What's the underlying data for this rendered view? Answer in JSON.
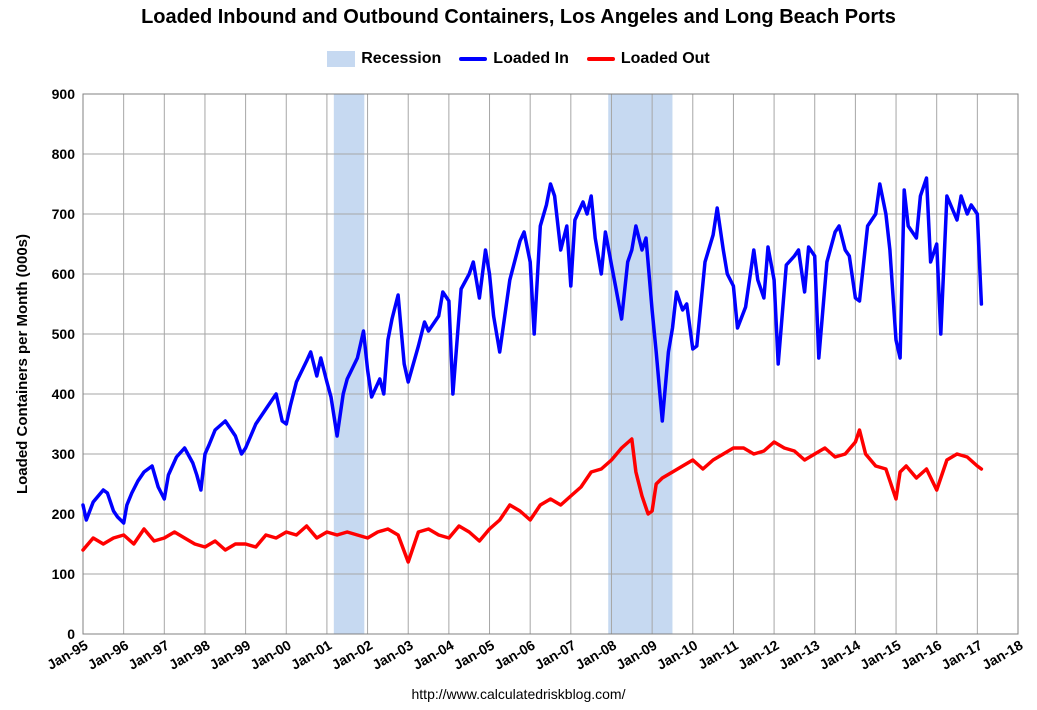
{
  "title": "Loaded Inbound and Outbound Containers, Los Angeles and Long Beach Ports",
  "source": "http://www.calculatedriskblog.com/",
  "legend": {
    "recession": "Recession",
    "loaded_in": "Loaded In",
    "loaded_out": "Loaded Out"
  },
  "colors": {
    "recession": "#c6d9f1",
    "loaded_in": "#0000ff",
    "loaded_out": "#ff0000",
    "grid": "#a6a6a6"
  },
  "chart_data": {
    "type": "line",
    "title": "Loaded Inbound and Outbound Containers, Los Angeles and Long Beach Ports",
    "xlabel": "",
    "ylabel": "Loaded Containers per Month (000s)",
    "ylim": [
      0,
      900
    ],
    "yticks": [
      0,
      100,
      200,
      300,
      400,
      500,
      600,
      700,
      800,
      900
    ],
    "xlim": [
      1995,
      2018
    ],
    "xticks": [
      "Jan-95",
      "Jan-96",
      "Jan-97",
      "Jan-98",
      "Jan-99",
      "Jan-00",
      "Jan-01",
      "Jan-02",
      "Jan-03",
      "Jan-04",
      "Jan-05",
      "Jan-06",
      "Jan-07",
      "Jan-08",
      "Jan-09",
      "Jan-10",
      "Jan-11",
      "Jan-12",
      "Jan-13",
      "Jan-14",
      "Jan-15",
      "Jan-16",
      "Jan-17",
      "Jan-18"
    ],
    "grid": true,
    "legend_position": "top-center",
    "recessions": [
      {
        "start": 2001.17,
        "end": 2001.92
      },
      {
        "start": 2007.92,
        "end": 2009.5
      }
    ],
    "series": [
      {
        "name": "Loaded In",
        "x": [
          1995.0,
          1995.08,
          1995.25,
          1995.5,
          1995.6,
          1995.75,
          1995.85,
          1996.0,
          1996.08,
          1996.2,
          1996.35,
          1996.5,
          1996.7,
          1996.85,
          1997.0,
          1997.1,
          1997.3,
          1997.5,
          1997.7,
          1997.8,
          1997.9,
          1998.0,
          1998.1,
          1998.25,
          1998.5,
          1998.75,
          1998.9,
          1999.0,
          1999.25,
          1999.5,
          1999.75,
          1999.9,
          2000.0,
          2000.1,
          2000.25,
          2000.5,
          2000.6,
          2000.75,
          2000.85,
          2001.0,
          2001.1,
          2001.25,
          2001.4,
          2001.5,
          2001.75,
          2001.9,
          2002.0,
          2002.1,
          2002.3,
          2002.4,
          2002.5,
          2002.6,
          2002.75,
          2002.9,
          2003.0,
          2003.25,
          2003.4,
          2003.5,
          2003.75,
          2003.85,
          2004.0,
          2004.1,
          2004.3,
          2004.5,
          2004.6,
          2004.75,
          2004.9,
          2005.0,
          2005.1,
          2005.25,
          2005.5,
          2005.75,
          2005.85,
          2006.0,
          2006.1,
          2006.25,
          2006.4,
          2006.5,
          2006.6,
          2006.75,
          2006.9,
          2007.0,
          2007.1,
          2007.3,
          2007.4,
          2007.5,
          2007.6,
          2007.75,
          2007.85,
          2008.0,
          2008.1,
          2008.25,
          2008.4,
          2008.5,
          2008.6,
          2008.75,
          2008.85,
          2009.0,
          2009.1,
          2009.25,
          2009.4,
          2009.5,
          2009.6,
          2009.75,
          2009.85,
          2010.0,
          2010.1,
          2010.3,
          2010.5,
          2010.6,
          2010.75,
          2010.85,
          2011.0,
          2011.1,
          2011.3,
          2011.5,
          2011.6,
          2011.75,
          2011.85,
          2012.0,
          2012.1,
          2012.3,
          2012.5,
          2012.6,
          2012.75,
          2012.85,
          2013.0,
          2013.1,
          2013.3,
          2013.5,
          2013.6,
          2013.75,
          2013.85,
          2014.0,
          2014.1,
          2014.3,
          2014.5,
          2014.6,
          2014.75,
          2014.85,
          2015.0,
          2015.1,
          2015.2,
          2015.3,
          2015.5,
          2015.6,
          2015.75,
          2015.85,
          2016.0,
          2016.1,
          2016.25,
          2016.5,
          2016.6,
          2016.75,
          2016.85,
          2017.0,
          2017.1
        ],
        "values": [
          215,
          190,
          220,
          240,
          235,
          205,
          195,
          185,
          215,
          235,
          255,
          270,
          280,
          245,
          225,
          265,
          295,
          310,
          285,
          265,
          240,
          300,
          315,
          340,
          355,
          330,
          300,
          310,
          350,
          375,
          400,
          355,
          350,
          380,
          420,
          455,
          470,
          430,
          460,
          420,
          395,
          330,
          400,
          425,
          460,
          505,
          440,
          395,
          425,
          400,
          490,
          525,
          565,
          450,
          420,
          480,
          520,
          505,
          530,
          570,
          555,
          400,
          575,
          600,
          620,
          560,
          640,
          600,
          530,
          470,
          590,
          655,
          670,
          620,
          500,
          680,
          715,
          750,
          730,
          640,
          680,
          580,
          690,
          720,
          700,
          730,
          660,
          600,
          670,
          615,
          580,
          525,
          620,
          640,
          680,
          640,
          660,
          540,
          470,
          355,
          470,
          510,
          570,
          540,
          550,
          475,
          480,
          620,
          665,
          710,
          640,
          600,
          580,
          510,
          545,
          640,
          590,
          560,
          645,
          590,
          450,
          615,
          630,
          640,
          570,
          645,
          630,
          460,
          620,
          670,
          680,
          640,
          630,
          560,
          555,
          680,
          700,
          750,
          700,
          640,
          490,
          460,
          740,
          680,
          660,
          730,
          760,
          620,
          650,
          500,
          730,
          690,
          730,
          700,
          715,
          700,
          550
        ]
      },
      {
        "name": "Loaded Out",
        "x": [
          1995.0,
          1995.25,
          1995.5,
          1995.75,
          1996.0,
          1996.25,
          1996.5,
          1996.75,
          1997.0,
          1997.25,
          1997.5,
          1997.75,
          1998.0,
          1998.25,
          1998.5,
          1998.75,
          1999.0,
          1999.25,
          1999.5,
          1999.75,
          2000.0,
          2000.25,
          2000.5,
          2000.75,
          2001.0,
          2001.25,
          2001.5,
          2001.75,
          2002.0,
          2002.25,
          2002.5,
          2002.75,
          2003.0,
          2003.25,
          2003.5,
          2003.75,
          2004.0,
          2004.25,
          2004.5,
          2004.75,
          2005.0,
          2005.25,
          2005.5,
          2005.75,
          2006.0,
          2006.25,
          2006.5,
          2006.75,
          2007.0,
          2007.25,
          2007.5,
          2007.75,
          2008.0,
          2008.25,
          2008.5,
          2008.6,
          2008.75,
          2008.9,
          2009.0,
          2009.1,
          2009.25,
          2009.5,
          2009.75,
          2010.0,
          2010.25,
          2010.5,
          2010.75,
          2011.0,
          2011.25,
          2011.5,
          2011.75,
          2012.0,
          2012.25,
          2012.5,
          2012.75,
          2013.0,
          2013.25,
          2013.5,
          2013.75,
          2014.0,
          2014.1,
          2014.25,
          2014.5,
          2014.75,
          2015.0,
          2015.1,
          2015.25,
          2015.5,
          2015.75,
          2016.0,
          2016.25,
          2016.5,
          2016.75,
          2017.0,
          2017.1
        ],
        "values": [
          140,
          160,
          150,
          160,
          165,
          150,
          175,
          155,
          160,
          170,
          160,
          150,
          145,
          155,
          140,
          150,
          150,
          145,
          165,
          160,
          170,
          165,
          180,
          160,
          170,
          165,
          170,
          165,
          160,
          170,
          175,
          165,
          120,
          170,
          175,
          165,
          160,
          180,
          170,
          155,
          175,
          190,
          215,
          205,
          190,
          215,
          225,
          215,
          230,
          245,
          270,
          275,
          290,
          310,
          325,
          270,
          230,
          200,
          205,
          250,
          260,
          270,
          280,
          290,
          275,
          290,
          300,
          310,
          310,
          300,
          305,
          320,
          310,
          305,
          290,
          300,
          310,
          295,
          300,
          320,
          340,
          300,
          280,
          275,
          225,
          270,
          280,
          260,
          275,
          240,
          290,
          300,
          295,
          280,
          275
        ]
      }
    ]
  }
}
